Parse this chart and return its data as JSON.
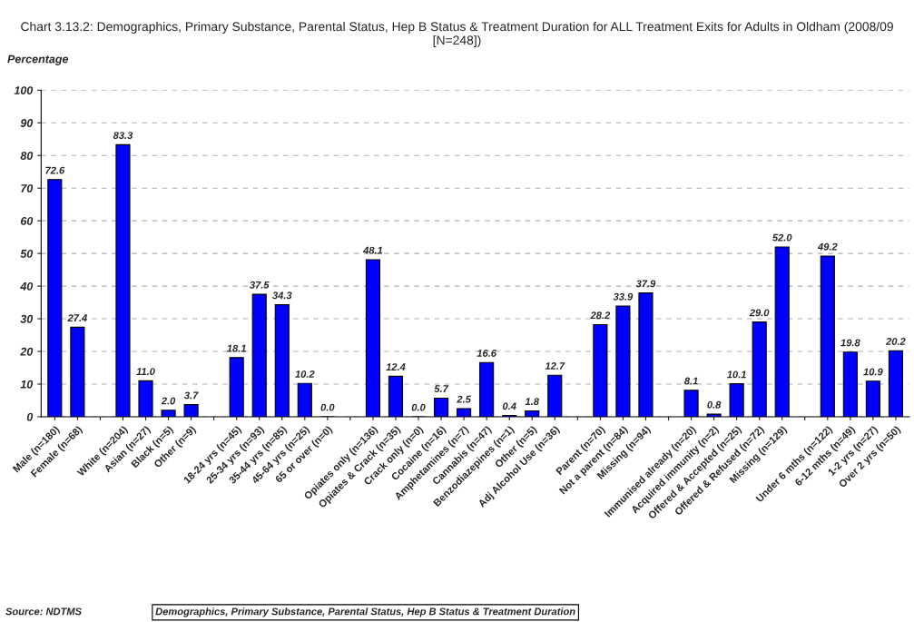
{
  "chart_data": {
    "type": "bar",
    "title": "Chart 3.13.2: Demographics, Primary Substance, Parental Status, Hep B Status & Treatment Duration for ALL Treatment Exits for Adults in Oldham (2008/09 [N=248])",
    "ylabel": "Percentage",
    "categories": [
      "Male (n=180)",
      "Female (n=68)",
      null,
      "White (n=204)",
      "Asian (n=27)",
      "Black (n=5)",
      "Other (n=9)",
      null,
      "18-24 yrs (n=45)",
      "25-34 yrs (n=93)",
      "35-44 yrs (n=85)",
      "45-64 yrs (n=25)",
      "65 or over (n=0)",
      null,
      "Opiates only (n=136)",
      "Opiates & Crack (n=35)",
      "Crack only (n=0)",
      "Cocaine (n=16)",
      "Amphetamines (n=7)",
      "Cannabis (n=47)",
      "Benzodiazepines (n=1)",
      "Other (n=5)",
      "Adj Alcohol Use (n=36)",
      null,
      "Parent (n=70)",
      "Not a parent (n=84)",
      "Missing (n=94)",
      null,
      "Immunised already (n=20)",
      "Acquired immunity (n=2)",
      "Offered & Accepted (n=25)",
      "Offered & Refused (n=72)",
      "Missing (n=129)",
      null,
      "Under 6 mths (n=122)",
      "6-12 mths (n=49)",
      "1-2 yrs (n=27)",
      "Over 2 yrs (n=50)"
    ],
    "values": [
      72.6,
      27.4,
      null,
      83.3,
      11.0,
      2.0,
      3.7,
      null,
      18.1,
      37.5,
      34.3,
      10.2,
      0.0,
      null,
      48.1,
      12.4,
      0.0,
      5.7,
      2.5,
      16.6,
      0.4,
      1.8,
      12.7,
      null,
      28.2,
      33.9,
      37.9,
      null,
      8.1,
      0.8,
      10.1,
      29.0,
      52.0,
      null,
      49.2,
      19.8,
      10.9,
      20.2
    ],
    "value_labels": [
      "72.6",
      "27.4",
      null,
      "83.3",
      "11.0",
      "2.0",
      "3.7",
      null,
      "18.1",
      "37.5",
      "34.3",
      "10.2",
      "0.0",
      null,
      "48.1",
      "12.4",
      "0.0",
      "5.7",
      "2.5",
      "16.6",
      "0.4",
      "1.8",
      "12.7",
      null,
      "28.2",
      "33.9",
      "37.9",
      null,
      "8.1",
      "0.8",
      "10.1",
      "29.0",
      "52.0",
      null,
      "49.2",
      "19.8",
      "10.9",
      "20.2"
    ],
    "color": "#0000ff",
    "ylim": [
      0,
      100
    ],
    "yticks": [
      0,
      10,
      20,
      30,
      40,
      50,
      60,
      70,
      80,
      90,
      100
    ],
    "grid": "y",
    "annotations": [
      "Source: NDTMS",
      "Demographics, Primary Substance, Parental Status, Hep B Status & Treatment Duration"
    ]
  }
}
